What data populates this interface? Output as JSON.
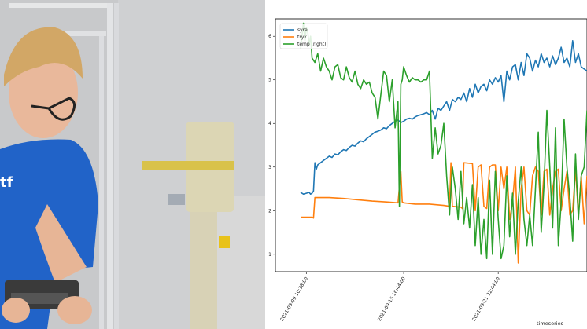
{
  "scene": {
    "left_description_name": "video-frame",
    "shirt_logo_text": "tf"
  },
  "chart_data": {
    "type": "line",
    "xlabel": "timeseries",
    "x_tick_labels": [
      "2021-09-09 10:38:00",
      "2021-09-15 16:44:00",
      "2021-09-21 22:44:00"
    ],
    "y_left_ticks": [
      1,
      2,
      3,
      4,
      5,
      6
    ],
    "ylim": [
      0.6,
      6.4
    ],
    "grid": false,
    "legend_position": "top-left",
    "series": [
      {
        "name": "syre",
        "color": "#1f77b4",
        "axis": "left",
        "x": [
          0,
          0.01,
          0.02,
          0.03,
          0.035,
          0.04,
          0.045,
          0.05,
          0.055,
          0.06,
          0.07,
          0.08,
          0.09,
          0.1,
          0.11,
          0.12,
          0.13,
          0.14,
          0.15,
          0.16,
          0.17,
          0.18,
          0.19,
          0.2,
          0.21,
          0.22,
          0.23,
          0.24,
          0.25,
          0.26,
          0.27,
          0.28,
          0.29,
          0.3,
          0.31,
          0.32,
          0.33,
          0.34,
          0.35,
          0.36,
          0.37,
          0.38,
          0.39,
          0.4,
          0.41,
          0.42,
          0.43,
          0.44,
          0.45,
          0.46,
          0.47,
          0.48,
          0.49,
          0.5,
          0.51,
          0.52,
          0.53,
          0.54,
          0.55,
          0.56,
          0.57,
          0.58,
          0.59,
          0.6,
          0.61,
          0.62,
          0.63,
          0.64,
          0.65,
          0.66,
          0.67,
          0.68,
          0.69,
          0.7,
          0.71,
          0.72,
          0.73,
          0.74,
          0.75,
          0.76,
          0.77,
          0.78,
          0.79,
          0.8,
          0.81,
          0.82,
          0.83,
          0.84,
          0.85,
          0.86,
          0.87,
          0.88,
          0.89,
          0.9,
          0.91,
          0.92,
          0.93,
          0.94,
          0.95,
          0.96,
          0.97,
          0.98,
          0.99,
          1.0
        ],
        "values": [
          2.42,
          2.38,
          2.4,
          2.42,
          2.38,
          2.4,
          2.45,
          3.1,
          2.95,
          3.05,
          3.1,
          3.15,
          3.2,
          3.25,
          3.22,
          3.3,
          3.28,
          3.35,
          3.4,
          3.38,
          3.45,
          3.5,
          3.48,
          3.55,
          3.6,
          3.58,
          3.65,
          3.7,
          3.75,
          3.8,
          3.82,
          3.85,
          3.9,
          3.88,
          3.95,
          4.0,
          4.05,
          4.08,
          4.02,
          4.05,
          4.1,
          4.12,
          4.1,
          4.15,
          4.18,
          4.2,
          4.22,
          4.25,
          4.2,
          4.3,
          4.1,
          4.35,
          4.3,
          4.4,
          4.5,
          4.3,
          4.55,
          4.5,
          4.6,
          4.55,
          4.7,
          4.5,
          4.8,
          4.6,
          4.9,
          4.7,
          4.85,
          4.9,
          4.75,
          5.0,
          4.9,
          5.05,
          4.95,
          5.1,
          4.5,
          5.2,
          5.0,
          5.3,
          5.35,
          5.0,
          5.4,
          5.1,
          5.6,
          5.5,
          5.2,
          5.45,
          5.3,
          5.6,
          5.4,
          5.5,
          5.3,
          5.55,
          5.35,
          5.5,
          5.75,
          5.4,
          5.5,
          5.3,
          5.9,
          5.4,
          5.6,
          5.3,
          5.25,
          5.2
        ]
      },
      {
        "name": "tryk",
        "color": "#ff7f0e",
        "axis": "left",
        "x": [
          0,
          0.04,
          0.045,
          0.05,
          0.1,
          0.15,
          0.2,
          0.25,
          0.3,
          0.34,
          0.35,
          0.355,
          0.36,
          0.4,
          0.45,
          0.5,
          0.52,
          0.525,
          0.53,
          0.56,
          0.565,
          0.57,
          0.6,
          0.61,
          0.62,
          0.63,
          0.64,
          0.65,
          0.66,
          0.67,
          0.68,
          0.69,
          0.7,
          0.71,
          0.72,
          0.73,
          0.74,
          0.75,
          0.76,
          0.77,
          0.78,
          0.79,
          0.8,
          0.81,
          0.82,
          0.83,
          0.84,
          0.85,
          0.86,
          0.87,
          0.88,
          0.89,
          0.9,
          0.91,
          0.92,
          0.93,
          0.94,
          0.95,
          0.96,
          0.97,
          0.98,
          0.99,
          1.0
        ],
        "values": [
          1.85,
          1.85,
          1.83,
          2.3,
          2.3,
          2.28,
          2.25,
          2.22,
          2.2,
          2.18,
          2.9,
          2.2,
          2.18,
          2.15,
          2.15,
          2.12,
          2.1,
          3.1,
          2.1,
          2.08,
          2.05,
          3.1,
          3.08,
          2.0,
          3.0,
          3.05,
          2.1,
          2.05,
          3.0,
          3.05,
          3.05,
          2.0,
          3.0,
          2.5,
          3.0,
          1.8,
          2.2,
          3.0,
          0.8,
          2.5,
          3.0,
          2.0,
          1.9,
          2.8,
          3.0,
          2.9,
          1.9,
          2.9,
          2.95,
          1.9,
          2.5,
          2.9,
          2.95,
          2.0,
          2.5,
          2.9,
          1.9,
          2.0,
          2.95,
          1.9,
          2.8,
          1.7,
          2.8
        ]
      },
      {
        "name": "temp (right)",
        "color": "#2ca02c",
        "axis": "left",
        "x": [
          0,
          0.005,
          0.01,
          0.015,
          0.02,
          0.025,
          0.03,
          0.035,
          0.04,
          0.05,
          0.06,
          0.07,
          0.08,
          0.09,
          0.1,
          0.11,
          0.12,
          0.13,
          0.14,
          0.15,
          0.16,
          0.17,
          0.18,
          0.19,
          0.2,
          0.21,
          0.22,
          0.23,
          0.24,
          0.25,
          0.26,
          0.27,
          0.28,
          0.29,
          0.3,
          0.31,
          0.32,
          0.33,
          0.34,
          0.345,
          0.35,
          0.355,
          0.36,
          0.37,
          0.38,
          0.39,
          0.4,
          0.41,
          0.42,
          0.43,
          0.44,
          0.45,
          0.46,
          0.47,
          0.48,
          0.49,
          0.5,
          0.51,
          0.52,
          0.53,
          0.54,
          0.55,
          0.56,
          0.57,
          0.58,
          0.59,
          0.6,
          0.61,
          0.62,
          0.63,
          0.64,
          0.65,
          0.66,
          0.67,
          0.68,
          0.69,
          0.7,
          0.71,
          0.72,
          0.73,
          0.74,
          0.75,
          0.76,
          0.77,
          0.78,
          0.79,
          0.8,
          0.81,
          0.82,
          0.83,
          0.84,
          0.85,
          0.86,
          0.87,
          0.88,
          0.89,
          0.9,
          0.91,
          0.92,
          0.93,
          0.94,
          0.95,
          0.96,
          0.97,
          0.98,
          0.99,
          1.0
        ],
        "values": [
          5.7,
          6.0,
          6.3,
          5.9,
          6.2,
          6.1,
          5.8,
          6.0,
          5.5,
          5.4,
          5.6,
          5.2,
          5.5,
          5.3,
          5.2,
          5.0,
          5.3,
          5.35,
          5.05,
          5.0,
          5.3,
          5.05,
          4.95,
          5.2,
          4.9,
          4.8,
          5.0,
          4.9,
          4.95,
          4.7,
          4.6,
          4.1,
          4.65,
          5.2,
          5.1,
          4.5,
          5.0,
          3.9,
          4.5,
          2.1,
          4.9,
          5.0,
          5.3,
          5.1,
          4.95,
          5.05,
          5.0,
          5.0,
          4.95,
          5.0,
          5.0,
          5.2,
          3.2,
          3.9,
          3.3,
          3.5,
          4.0,
          2.8,
          1.9,
          3.0,
          2.5,
          1.8,
          2.9,
          1.7,
          2.3,
          1.6,
          2.6,
          1.2,
          2.3,
          1.0,
          1.8,
          0.9,
          2.7,
          1.0,
          2.9,
          1.8,
          0.9,
          1.2,
          2.8,
          1.4,
          2.4,
          1.0,
          2.2,
          3.0,
          1.8,
          1.2,
          1.9,
          1.2,
          2.5,
          3.8,
          1.5,
          2.6,
          4.3,
          3.0,
          1.6,
          3.9,
          1.2,
          2.2,
          4.1,
          3.0,
          2.3,
          1.3,
          3.3,
          1.8,
          2.8,
          3.0,
          4.3
        ]
      }
    ]
  }
}
